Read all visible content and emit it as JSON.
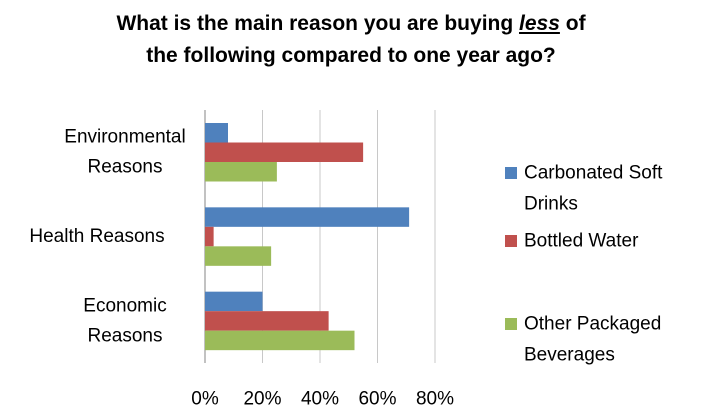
{
  "chart_data": {
    "type": "bar",
    "orientation": "horizontal",
    "title_parts": [
      "What is the main reason you are buying ",
      "less",
      " of",
      "the following compared to one year ago?"
    ],
    "categories": [
      [
        "Environmental",
        "Reasons"
      ],
      [
        "Health Reasons"
      ],
      [
        "Economic",
        "Reasons"
      ]
    ],
    "series": [
      {
        "name_lines": [
          "Carbonated Soft",
          "Drinks"
        ],
        "color": "#4f81bd",
        "values": [
          0.08,
          0.71,
          0.2
        ]
      },
      {
        "name_lines": [
          "Bottled Water"
        ],
        "color": "#c0504d",
        "values": [
          0.55,
          0.03,
          0.43
        ]
      },
      {
        "name_lines": [
          "Other Packaged",
          "Beverages"
        ],
        "color": "#9bbb59",
        "values": [
          0.25,
          0.23,
          0.52
        ]
      }
    ],
    "xlim": [
      0,
      0.8
    ],
    "xticks": [
      "0%",
      "20%",
      "40%",
      "60%",
      "80%"
    ],
    "grid": true,
    "legend": "right"
  }
}
